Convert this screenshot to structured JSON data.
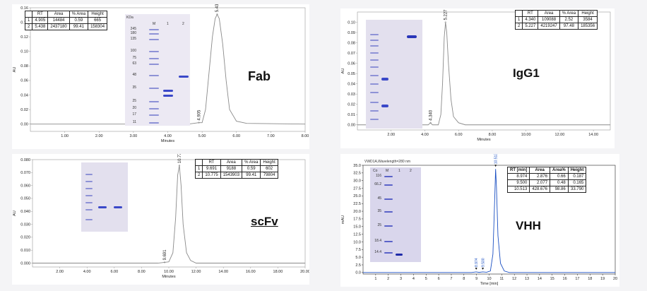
{
  "colors": {
    "trace": "#8a8a8a",
    "vhh_trace": "#1a4fc2",
    "gel_bg": "#e6e4ef",
    "band": "#3a48c8",
    "ladder": "#8e92d6"
  },
  "chart_data": [
    {
      "type": "line",
      "label": "Fab",
      "ylabel": "AU",
      "xlabel": "Minutes",
      "xlim": [
        0,
        8.0
      ],
      "ylim": [
        -0.01,
        0.16
      ],
      "xticks": [
        "1.00",
        "2.00",
        "3.00",
        "4.00",
        "5.00",
        "6.00",
        "7.00",
        "8.00"
      ],
      "yticks": [
        "0.00",
        "0.02",
        "0.04",
        "0.06",
        "0.08",
        "0.10",
        "0.12",
        "0.14",
        "0.16"
      ],
      "peak_labels": [
        "4.905",
        "5.438"
      ],
      "series": [
        {
          "x": [
            0,
            3.8,
            4.6,
            4.9,
            5.0,
            5.1,
            5.2,
            5.3,
            5.38,
            5.438,
            5.5,
            5.6,
            5.7,
            5.8,
            6.0,
            6.3,
            8.0
          ],
          "y": [
            0,
            0,
            0,
            0.002,
            0.002,
            0.02,
            0.07,
            0.12,
            0.145,
            0.151,
            0.145,
            0.11,
            0.06,
            0.02,
            0.004,
            0.001,
            0
          ]
        }
      ],
      "table": {
        "headers": [
          "",
          "RT",
          "Area",
          "% Area",
          "Height"
        ],
        "rows": [
          [
            "1",
            "4.905",
            "14484",
            "0.59",
            "665"
          ],
          [
            "2",
            "5.438",
            "2437180",
            "99.41",
            "158304"
          ]
        ]
      },
      "gel": {
        "unit_label": "KDa",
        "lanes": [
          "M",
          "1",
          "2"
        ],
        "markers": [
          "245",
          "180",
          "135",
          "100",
          "75",
          "63",
          "48",
          "35",
          "25",
          "20",
          "17",
          "11"
        ]
      }
    },
    {
      "type": "line",
      "label": "IgG1",
      "ylabel": "AU",
      "xlabel": "Minutes",
      "xlim": [
        0,
        15.0
      ],
      "ylim": [
        -0.005,
        0.11
      ],
      "xticks": [
        "2.00",
        "4.00",
        "6.00",
        "8.00",
        "10.00",
        "12.00",
        "14.00"
      ],
      "yticks": [
        "0.00",
        "0.01",
        "0.02",
        "0.03",
        "0.04",
        "0.05",
        "0.06",
        "0.07",
        "0.08",
        "0.09",
        "0.10"
      ],
      "peak_labels": [
        "4.340",
        "5.227"
      ],
      "series": [
        {
          "x": [
            0,
            3.6,
            4.2,
            4.34,
            4.45,
            4.8,
            4.95,
            5.05,
            5.15,
            5.227,
            5.3,
            5.4,
            5.55,
            5.7,
            6.0,
            6.4,
            15.0
          ],
          "y": [
            0,
            0,
            0,
            0.002,
            0,
            0,
            0.01,
            0.04,
            0.085,
            0.1,
            0.09,
            0.06,
            0.025,
            0.008,
            0.002,
            0,
            0
          ]
        }
      ],
      "table": {
        "headers": [
          "",
          "RT",
          "Area",
          "% Area",
          "Height"
        ],
        "rows": [
          [
            "1",
            "4.340",
            "109088",
            "2.52",
            "3584"
          ],
          [
            "2",
            "5.227",
            "4219247",
            "97.48",
            "185356"
          ]
        ]
      },
      "gel": {
        "lanes": []
      }
    },
    {
      "type": "line",
      "label": "scFv",
      "ylabel": "AU",
      "xlabel": "Minutes",
      "xlim": [
        0,
        20.0
      ],
      "ylim": [
        -0.003,
        0.08
      ],
      "xticks": [
        "2.00",
        "4.00",
        "6.00",
        "8.00",
        "10.00",
        "12.00",
        "14.00",
        "16.00",
        "18.00",
        "20.00"
      ],
      "yticks": [
        "0.000",
        "0.010",
        "0.020",
        "0.030",
        "0.040",
        "0.050",
        "0.060",
        "0.070",
        "0.080"
      ],
      "peak_labels": [
        "9.691",
        "10.775"
      ],
      "series": [
        {
          "x": [
            0,
            9.2,
            9.69,
            10.0,
            10.3,
            10.5,
            10.65,
            10.775,
            10.9,
            11.05,
            11.3,
            11.6,
            12.0,
            20.0
          ],
          "y": [
            0,
            0,
            0.0006,
            0.001,
            0.008,
            0.035,
            0.068,
            0.0755,
            0.06,
            0.03,
            0.008,
            0.002,
            0,
            0
          ]
        }
      ],
      "table": {
        "headers": [
          "",
          "RT",
          "Area",
          "% Area",
          "Height"
        ],
        "rows": [
          [
            "1",
            "9.691",
            "9188",
            "0.59",
            "602"
          ],
          [
            "2",
            "10.775",
            "1543903",
            "99.41",
            "79804"
          ]
        ]
      },
      "gel": {
        "lanes": []
      }
    },
    {
      "type": "line",
      "label": "VHH",
      "title": "VWD1A,Wavelength=280 nm",
      "ylabel": "mAU",
      "xlabel": "Time [min]",
      "xlim": [
        0,
        20
      ],
      "ylim": [
        -0.5,
        35
      ],
      "xticks": [
        "1",
        "2",
        "3",
        "4",
        "5",
        "6",
        "7",
        "8",
        "9",
        "10",
        "11",
        "12",
        "13",
        "14",
        "15",
        "16",
        "17",
        "18",
        "19",
        "20"
      ],
      "yticks": [
        "0.0",
        "2.5",
        "5.0",
        "7.5",
        "10.0",
        "12.5",
        "15.0",
        "17.5",
        "20.0",
        "22.5",
        "25.0",
        "27.5",
        "30.0",
        "32.5",
        "35.0"
      ],
      "peak_labels": [
        "8.974",
        "9.500",
        "10.513"
      ],
      "series": [
        {
          "x": [
            0,
            8.6,
            8.97,
            9.2,
            9.5,
            9.8,
            10.1,
            10.3,
            10.45,
            10.513,
            10.58,
            10.7,
            10.9,
            11.2,
            11.6,
            20
          ],
          "y": [
            0,
            0,
            0.2,
            0.05,
            0.2,
            0.1,
            0.5,
            6,
            25,
            33.8,
            28,
            12,
            3,
            0.5,
            0,
            0
          ]
        }
      ],
      "table": {
        "headers": [
          "RT [min]",
          "Area",
          "Area%",
          "Height"
        ],
        "rows": [
          [
            "8.974",
            "2.876",
            "0.66",
            "0.187"
          ],
          [
            "9.500",
            "2.077",
            "0.48",
            "0.165"
          ],
          [
            "10.513",
            "428.676",
            "98.86",
            "33.790"
          ]
        ]
      },
      "gel": {
        "lanes": [
          "Co",
          "M",
          "1",
          "2"
        ],
        "markers": [
          "116",
          "66.2",
          "45",
          "35",
          "25",
          "18.4",
          "14.4"
        ]
      }
    }
  ]
}
